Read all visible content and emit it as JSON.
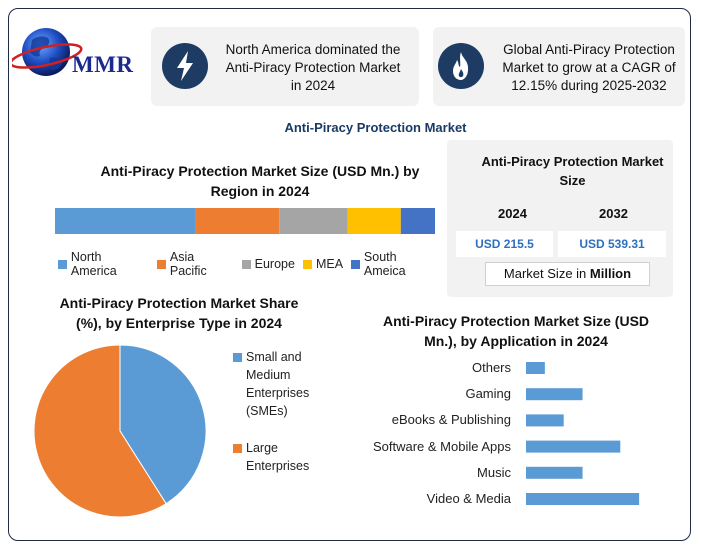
{
  "logo": {
    "text": "MMR"
  },
  "cards": [
    {
      "icon": "lightning-icon",
      "text": "North America dominated the Anti-Piracy Protection Market in 2024"
    },
    {
      "icon": "flame-icon",
      "text": "Global Anti-Piracy Protection Market to grow at a CAGR of 12.15% during 2025-2032"
    }
  ],
  "main_title": "Anti-Piracy Protection Market",
  "size_panel": {
    "title": "Anti-Piracy Protection Market Size",
    "year1": "2024",
    "year2": "2032",
    "value1": "USD 215.5",
    "value2": "USD 539.31",
    "unit_prefix": "Market Size in ",
    "unit_bold": "Million"
  },
  "colors": {
    "blue": "#5b9bd5",
    "orange": "#ed7d31",
    "gray": "#a5a5a5",
    "yellow": "#ffc000",
    "darkblue": "#4472c4",
    "icon_bg": "#1e3c63",
    "accent_text": "#2e6fbd"
  },
  "chart_data": [
    {
      "type": "bar",
      "orientation": "stacked-horizontal",
      "title": "Anti-Piracy Protection Market Size (USD Mn.) by Region in 2024",
      "categories": [
        "North America",
        "Asia Pacific",
        "Europe",
        "MEA",
        "South Ameica"
      ],
      "values": [
        37,
        22,
        18,
        14,
        9
      ],
      "legend": "bottom"
    },
    {
      "type": "pie",
      "title": "Anti-Piracy Protection Market Share (%), by Enterprise Type in 2024",
      "labels": [
        "Small and Medium Enterprises (SMEs)",
        "Large Enterprises"
      ],
      "values": [
        41,
        59
      ],
      "legend": "right"
    },
    {
      "type": "bar",
      "orientation": "horizontal",
      "title": "Anti-Piracy Protection Market Size (USD Mn.), by Application in 2024",
      "categories": [
        "Others",
        "Gaming",
        "eBooks & Publishing",
        "Software & Mobile Apps",
        "Music",
        "Video & Media"
      ],
      "values": [
        10,
        30,
        20,
        50,
        30,
        60
      ],
      "xlim": [
        0,
        70
      ]
    }
  ]
}
